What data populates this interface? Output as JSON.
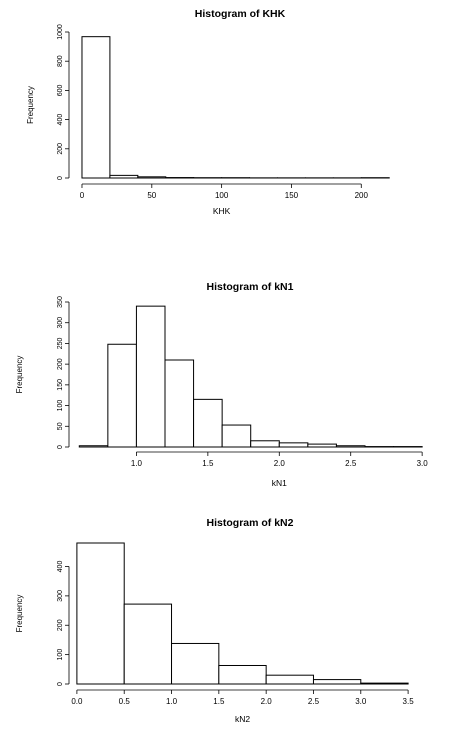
{
  "chart_data": [
    {
      "type": "bar",
      "title": "Histogram of KHK",
      "xlabel": "KHK",
      "ylabel": "Frequency",
      "bins": [
        [
          0,
          20
        ],
        [
          20,
          40
        ],
        [
          40,
          60
        ],
        [
          60,
          80
        ],
        [
          80,
          100
        ],
        [
          100,
          120
        ],
        [
          120,
          140
        ],
        [
          140,
          160
        ],
        [
          160,
          180
        ],
        [
          180,
          200
        ],
        [
          200,
          220
        ]
      ],
      "values": [
        968,
        18,
        8,
        3,
        2,
        2,
        1,
        1,
        1,
        1,
        2
      ],
      "xlim": [
        -5,
        222
      ],
      "ylim": [
        0,
        1000
      ],
      "xticks": [
        0,
        50,
        100,
        150,
        200
      ],
      "xtick_labels": [
        "0",
        "50",
        "100",
        "150",
        "200"
      ],
      "yticks": [
        0,
        200,
        400,
        600,
        800,
        1000
      ],
      "ytick_labels": [
        "0",
        "200",
        "400",
        "600",
        "800",
        "1000"
      ]
    },
    {
      "type": "bar",
      "title": "Histogram of kN1",
      "xlabel": "kN1",
      "ylabel": "Frequency",
      "bins": [
        [
          0.6,
          0.8
        ],
        [
          0.8,
          1.0
        ],
        [
          1.0,
          1.2
        ],
        [
          1.2,
          1.4
        ],
        [
          1.4,
          1.6
        ],
        [
          1.6,
          1.8
        ],
        [
          1.8,
          2.0
        ],
        [
          2.0,
          2.2
        ],
        [
          2.2,
          2.4
        ],
        [
          2.4,
          2.6
        ],
        [
          2.6,
          2.8
        ],
        [
          2.8,
          3.0
        ]
      ],
      "values": [
        3,
        248,
        340,
        210,
        115,
        53,
        15,
        10,
        7,
        3,
        1,
        1
      ],
      "xlim": [
        0.57,
        3.02
      ],
      "ylim": [
        0,
        350
      ],
      "xticks": [
        1.0,
        1.5,
        2.0,
        2.5,
        3.0
      ],
      "xtick_labels": [
        "1.0",
        "1.5",
        "2.0",
        "2.5",
        "3.0"
      ],
      "yticks": [
        0,
        50,
        100,
        150,
        200,
        250,
        300,
        350
      ],
      "ytick_labels": [
        "0",
        "50",
        "100",
        "150",
        "200",
        "250",
        "300",
        "350"
      ]
    },
    {
      "type": "bar",
      "title": "Histogram of kN2",
      "xlabel": "kN2",
      "ylabel": "Frequency",
      "bins": [
        [
          0.0,
          0.5
        ],
        [
          0.5,
          1.0
        ],
        [
          1.0,
          1.5
        ],
        [
          1.5,
          2.0
        ],
        [
          2.0,
          2.5
        ],
        [
          2.5,
          3.0
        ],
        [
          3.0,
          3.5
        ]
      ],
      "values": [
        480,
        272,
        138,
        63,
        30,
        15,
        3
      ],
      "xlim": [
        -0.02,
        3.52
      ],
      "ylim": [
        0,
        480
      ],
      "xticks": [
        0.0,
        0.5,
        1.0,
        1.5,
        2.0,
        2.5,
        3.0,
        3.5
      ],
      "xtick_labels": [
        "0.0",
        "0.5",
        "1.0",
        "1.5",
        "2.0",
        "2.5",
        "3.0",
        "3.5"
      ],
      "yticks": [
        0,
        100,
        200,
        300,
        400
      ],
      "ytick_labels": [
        "0",
        "100",
        "200",
        "300",
        "400"
      ]
    }
  ]
}
